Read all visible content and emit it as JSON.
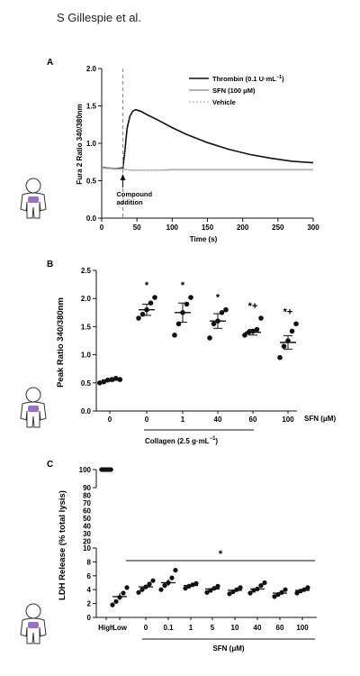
{
  "header": {
    "author": "S Gillespie et al."
  },
  "colors": {
    "ink": "#111111",
    "grey": "#9a9a9a",
    "lightgrey": "#c0c0c0",
    "figure": "#8a57b8"
  },
  "icons": [
    "person-outline-icon"
  ],
  "chart_data": [
    {
      "panel": "A",
      "type": "line",
      "xlabel": "Time (s)",
      "ylabel": "Fura 2 Ratio 340/380nm",
      "xlim": [
        0,
        300
      ],
      "ylim": [
        0,
        2
      ],
      "xticks": [
        "0",
        "50",
        "100",
        "150",
        "200",
        "250",
        "300"
      ],
      "yticks": [
        "0.0",
        "0.5",
        "1.0",
        "1.5",
        "2.0"
      ],
      "annotation": {
        "text": [
          "Compound",
          "addition"
        ],
        "x": 30
      },
      "legend_position": "top-right",
      "series": [
        {
          "name": "Thrombin (0.1 U·mL",
          "name_sup": "−1",
          "name_end": ")",
          "color": "#111111",
          "dash": "",
          "x": [
            0,
            10,
            20,
            28,
            30,
            33,
            36,
            40,
            44,
            48,
            55,
            65,
            80,
            100,
            120,
            150,
            180,
            210,
            240,
            270,
            300
          ],
          "y": [
            0.68,
            0.67,
            0.66,
            0.67,
            0.67,
            0.9,
            1.2,
            1.36,
            1.43,
            1.45,
            1.43,
            1.38,
            1.31,
            1.21,
            1.12,
            1.01,
            0.92,
            0.85,
            0.8,
            0.76,
            0.74
          ]
        },
        {
          "name": "SFN (100 μM)",
          "color": "#9a9a9a",
          "dash": "",
          "x": [
            0,
            10,
            20,
            30,
            40,
            50,
            60,
            80,
            100,
            150,
            200,
            250,
            300
          ],
          "y": [
            0.68,
            0.67,
            0.66,
            0.66,
            0.64,
            0.64,
            0.64,
            0.64,
            0.65,
            0.65,
            0.65,
            0.65,
            0.65
          ]
        },
        {
          "name": "Vehicle",
          "color": "#c0c0c0",
          "dash": "2,2",
          "x": [
            0,
            30,
            60,
            100,
            150,
            200,
            250,
            300
          ],
          "y": [
            0.66,
            0.65,
            0.64,
            0.64,
            0.64,
            0.64,
            0.64,
            0.64
          ]
        }
      ]
    },
    {
      "panel": "B",
      "type": "scatter",
      "ylabel": "Peak Ratio 340/380nm",
      "ylim": [
        0,
        2.5
      ],
      "yticks": [
        "0.0",
        "0.5",
        "1.0",
        "1.5",
        "2.0",
        "2.5"
      ],
      "categories": [
        "0",
        "0",
        "1",
        "40",
        "60",
        "100"
      ],
      "category_axis_label": "SFN (μM)",
      "group_label": "Collagen (2.5  g·mL",
      "group_label_sup": "−1",
      "group_label_end": ")",
      "markers": [
        {
          "values": [
            0.5,
            0.52,
            0.55,
            0.56,
            0.58,
            0.56
          ],
          "mean": 0.55,
          "sem": 0.02,
          "sig": ""
        },
        {
          "values": [
            1.65,
            1.72,
            1.8,
            1.92,
            2.02
          ],
          "mean": 1.8,
          "sem": 0.1,
          "sig": "*"
        },
        {
          "values": [
            1.35,
            1.55,
            1.75,
            1.9,
            2.02
          ],
          "mean": 1.75,
          "sem": 0.17,
          "sig": "*"
        },
        {
          "values": [
            1.3,
            1.55,
            1.6,
            1.75,
            1.8
          ],
          "mean": 1.6,
          "sem": 0.13,
          "sig": "*"
        },
        {
          "values": [
            1.35,
            1.4,
            1.42,
            1.45,
            1.65
          ],
          "mean": 1.4,
          "sem": 0.05,
          "sig": "*+"
        },
        {
          "values": [
            0.95,
            1.15,
            1.25,
            1.42,
            1.55
          ],
          "mean": 1.22,
          "sem": 0.12,
          "sig": "*+"
        }
      ]
    },
    {
      "panel": "C",
      "type": "scatter",
      "ylabel": "LDH Release (% total lysis)",
      "yticks_upper": [
        "90",
        "100"
      ],
      "yticks_lower": [
        "0",
        "2",
        "4",
        "6",
        "8",
        "10"
      ],
      "yticks_break": [
        "10",
        "20",
        "30",
        "40",
        "50",
        "60",
        "70",
        "80"
      ],
      "categories": [
        "High",
        "Low",
        "0",
        "0.1",
        "1",
        "5",
        "10",
        "40",
        "60",
        "100"
      ],
      "group_label": "SFN (μM)",
      "significance": "*",
      "markers": [
        {
          "values": [
            100,
            100,
            100,
            100,
            100,
            100
          ],
          "mean": 100,
          "sem": 0.2
        },
        {
          "values": [
            1.8,
            2.3,
            2.9,
            3.5,
            4.3
          ],
          "mean": 3.0,
          "sem": 0.5
        },
        {
          "values": [
            3.6,
            4.0,
            4.4,
            4.8,
            5.3
          ],
          "mean": 4.4,
          "sem": 0.3
        },
        {
          "values": [
            4.0,
            4.6,
            5.0,
            5.7,
            6.8
          ],
          "mean": 5.0,
          "sem": 0.5
        },
        {
          "values": [
            4.2,
            4.5,
            4.7,
            4.9
          ],
          "mean": 4.6,
          "sem": 0.2
        },
        {
          "values": [
            3.6,
            3.9,
            4.2,
            4.5
          ],
          "mean": 4.1,
          "sem": 0.2
        },
        {
          "values": [
            3.4,
            3.7,
            4.0,
            4.3
          ],
          "mean": 3.9,
          "sem": 0.2
        },
        {
          "values": [
            3.5,
            3.9,
            4.1,
            4.6,
            5.0
          ],
          "mean": 4.1,
          "sem": 0.3
        },
        {
          "values": [
            3.0,
            3.3,
            3.6,
            4.0
          ],
          "mean": 3.5,
          "sem": 0.2
        },
        {
          "values": [
            3.5,
            3.8,
            4.0,
            4.3
          ],
          "mean": 3.9,
          "sem": 0.2
        }
      ]
    }
  ]
}
